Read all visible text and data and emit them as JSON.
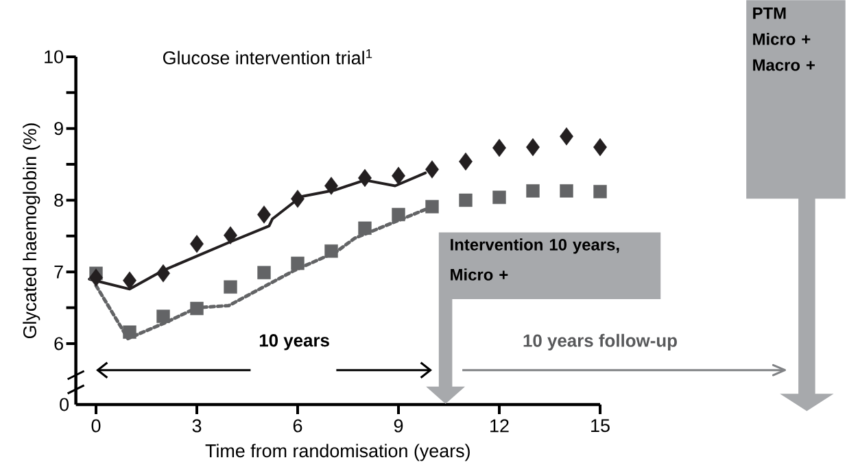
{
  "chart_data": {
    "type": "scatter",
    "title": "Glucose intervention trial$^{1}$",
    "xlabel": "Time from randomisation (years)",
    "ylabel": "Glycated haemoglobin (%)",
    "x": [
      0,
      1,
      2,
      3,
      4,
      5,
      6,
      7,
      8,
      9,
      10,
      11,
      12,
      13,
      14,
      15
    ],
    "xlim": [
      -0.6,
      15
    ],
    "ylim": [
      5.15,
      10
    ],
    "xticks": [
      0,
      3,
      6,
      9,
      12,
      15
    ],
    "yticks": [
      6,
      {
        "value": 6.5,
        "label": null
      },
      7,
      {
        "value": 7.5,
        "label": null
      },
      8,
      {
        "value": 8.5,
        "label": null
      },
      9,
      {
        "value": 9.5,
        "label": null
      },
      10
    ],
    "grid": false,
    "series": [
      {
        "marker": "diamond",
        "color": "#231f20",
        "values": [
          6.92,
          6.88,
          6.98,
          7.39,
          7.51,
          7.8,
          8.02,
          8.2,
          8.31,
          8.34,
          8.43,
          8.54,
          8.73,
          8.74,
          8.89,
          8.74
        ]
      },
      {
        "marker": "square",
        "color": "#636466",
        "values": [
          6.98,
          6.16,
          6.38,
          6.49,
          6.79,
          6.99,
          7.12,
          7.29,
          7.61,
          7.8,
          7.91,
          8.0,
          8.04,
          8.13,
          8.13,
          8.12
        ]
      },
      {
        "type": "line",
        "marker": "none",
        "line_style": "solid",
        "color": "#231f20",
        "x": [
          -0.2,
          1,
          2,
          4,
          5.15,
          5.25,
          6.1,
          7.1,
          8,
          8.9,
          9.8
        ],
        "values": [
          6.9,
          6.76,
          7.02,
          7.42,
          7.64,
          7.74,
          8.05,
          8.14,
          8.28,
          8.2,
          8.38
        ]
      },
      {
        "type": "line",
        "marker": "none",
        "line_style": "dotted",
        "color": "#636466",
        "x": [
          0,
          0.95,
          2.05,
          3,
          3.95,
          5.9,
          7.15,
          7.7,
          9.85
        ],
        "values": [
          6.81,
          6.07,
          6.29,
          6.5,
          6.53,
          7.02,
          7.28,
          7.47,
          7.88
        ]
      }
    ],
    "annotations": [
      "10 years",
      "10 years follow-up",
      "Intervention 10 years, Micro +",
      "PTM Micro + Macro +",
      "0"
    ]
  }
}
